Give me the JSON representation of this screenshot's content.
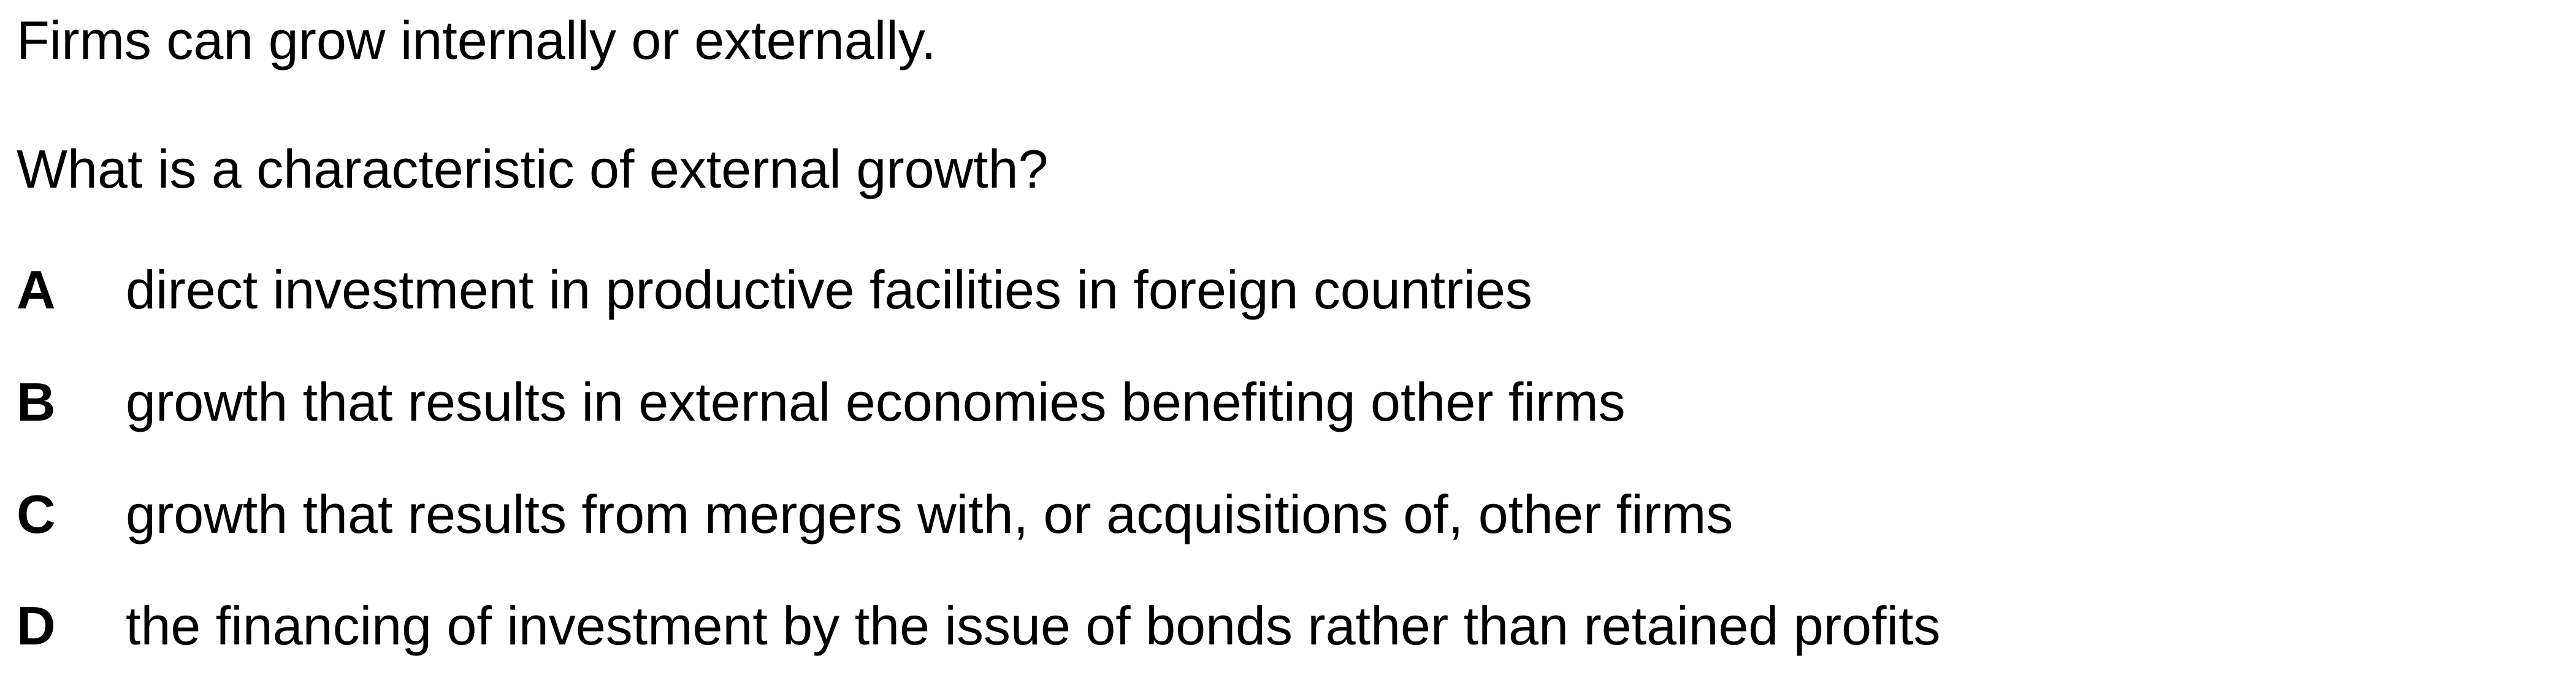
{
  "document": {
    "intro": "Firms can grow internally or externally.",
    "question": "What is a characteristic of external growth?",
    "options": [
      {
        "letter": "A",
        "text": "direct investment in productive facilities in foreign countries"
      },
      {
        "letter": "B",
        "text": "growth that results in external economies benefiting other firms"
      },
      {
        "letter": "C",
        "text": "growth that results from mergers with, or acquisitions of, other firms"
      },
      {
        "letter": "D",
        "text": "the financing of investment by the issue of bonds rather than retained profits"
      }
    ]
  }
}
